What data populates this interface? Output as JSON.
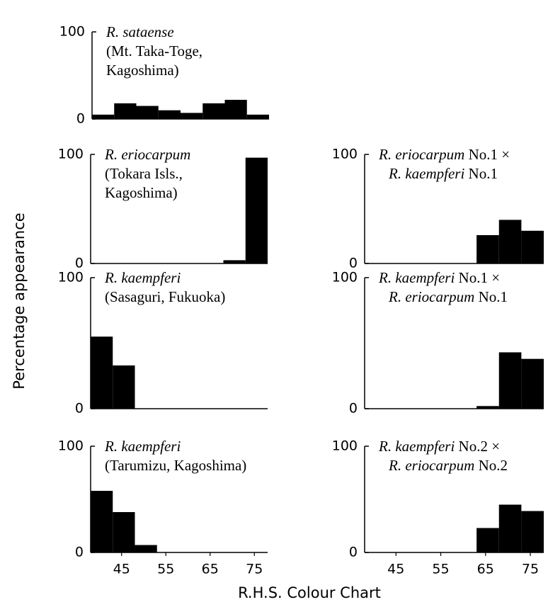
{
  "y_label": "Percentage appearance",
  "x_label": "R.H.S. Colour Chart",
  "chart_data": [
    {
      "type": "histogram",
      "title_lines": [
        [
          {
            "text": "R. sataense",
            "italic": true
          }
        ],
        [
          {
            "text": "(Mt. Taka-Toge,",
            "italic": false
          }
        ],
        [
          {
            "text": "Kagoshima)",
            "italic": false
          }
        ]
      ],
      "bins": [
        38,
        43,
        48,
        53,
        58,
        63,
        68,
        73,
        78
      ],
      "values": [
        5,
        18,
        15,
        10,
        7,
        18,
        22,
        5
      ],
      "color": "#000000",
      "xlim": [
        38,
        78
      ],
      "ylim": [
        0,
        100
      ],
      "yticks": [
        0,
        100
      ]
    },
    {
      "type": "histogram",
      "title_lines": [
        [
          {
            "text": "R. eriocarpum",
            "italic": true
          }
        ],
        [
          {
            "text": "(Tokara Isls.,",
            "italic": false
          }
        ],
        [
          {
            "text": "Kagoshima)",
            "italic": false
          }
        ]
      ],
      "bins": [
        38,
        43,
        48,
        53,
        58,
        63,
        68,
        73,
        78
      ],
      "values": [
        0,
        0,
        0,
        0,
        0,
        0,
        3,
        97
      ],
      "color": "#000000",
      "xlim": [
        38,
        78
      ],
      "ylim": [
        0,
        100
      ],
      "yticks": [
        0,
        100
      ]
    },
    {
      "type": "histogram",
      "title_lines": [
        [
          {
            "text": "R. eriocarpum",
            "italic": true
          },
          {
            "text": " No.1 ×",
            "italic": false
          }
        ],
        [
          {
            "text": "R. kaempferi",
            "italic": true
          },
          {
            "text": " No.1",
            "italic": false
          }
        ]
      ],
      "bins": [
        38,
        43,
        48,
        53,
        58,
        63,
        68,
        73,
        78
      ],
      "values": [
        0,
        0,
        0,
        0,
        0,
        26,
        40,
        30
      ],
      "color": "#000000",
      "xlim": [
        38,
        78
      ],
      "ylim": [
        0,
        100
      ],
      "yticks": [
        0,
        100
      ]
    },
    {
      "type": "histogram",
      "title_lines": [
        [
          {
            "text": "R. kaempferi",
            "italic": true
          }
        ],
        [
          {
            "text": "(Sasaguri, Fukuoka)",
            "italic": false
          }
        ]
      ],
      "bins": [
        38,
        43,
        48,
        53,
        58,
        63,
        68,
        73,
        78
      ],
      "values": [
        55,
        33,
        0,
        0,
        0,
        0,
        0,
        0
      ],
      "color": "#000000",
      "xlim": [
        38,
        78
      ],
      "ylim": [
        0,
        100
      ],
      "yticks": [
        0,
        100
      ]
    },
    {
      "type": "histogram",
      "title_lines": [
        [
          {
            "text": "R. kaempferi",
            "italic": true
          },
          {
            "text": " No.1 ×",
            "italic": false
          }
        ],
        [
          {
            "text": "R. eriocarpum",
            "italic": true
          },
          {
            "text": " No.1",
            "italic": false
          }
        ]
      ],
      "bins": [
        38,
        43,
        48,
        53,
        58,
        63,
        68,
        73,
        78
      ],
      "values": [
        0,
        0,
        0,
        0,
        0,
        2,
        43,
        38
      ],
      "color": "#000000",
      "xlim": [
        38,
        78
      ],
      "ylim": [
        0,
        100
      ],
      "yticks": [
        0,
        100
      ]
    },
    {
      "type": "histogram",
      "title_lines": [
        [
          {
            "text": "R. kaempferi",
            "italic": true
          }
        ],
        [
          {
            "text": "(Tarumizu, Kagoshima)",
            "italic": false
          }
        ]
      ],
      "bins": [
        38,
        43,
        48,
        53,
        58,
        63,
        68,
        73,
        78
      ],
      "values": [
        58,
        38,
        7,
        0,
        0,
        0,
        0,
        0
      ],
      "color": "#000000",
      "xlim": [
        38,
        78
      ],
      "ylim": [
        0,
        100
      ],
      "yticks": [
        0,
        100
      ],
      "xticks": [
        45,
        55,
        65,
        75
      ]
    },
    {
      "type": "histogram",
      "title_lines": [
        [
          {
            "text": "R. kaempferi",
            "italic": true
          },
          {
            "text": " No.2 ×",
            "italic": false
          }
        ],
        [
          {
            "text": "R. eriocarpum",
            "italic": true
          },
          {
            "text": " No.2",
            "italic": false
          }
        ]
      ],
      "bins": [
        38,
        43,
        48,
        53,
        58,
        63,
        68,
        73,
        78
      ],
      "values": [
        0,
        0,
        0,
        0,
        0,
        23,
        45,
        39
      ],
      "color": "#000000",
      "xlim": [
        38,
        78
      ],
      "ylim": [
        0,
        100
      ],
      "yticks": [
        0,
        100
      ],
      "xticks": [
        45,
        55,
        65,
        75
      ]
    }
  ]
}
